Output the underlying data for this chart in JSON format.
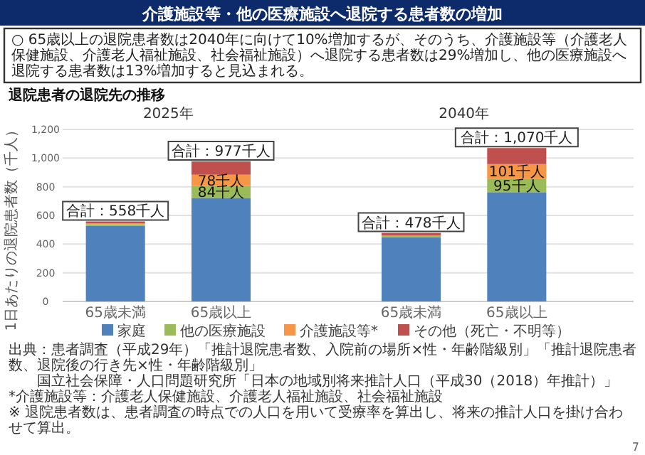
{
  "chart_data": {
    "type": "bar",
    "title": "介護施設等・他の医療施設へ退院する患者数の増加",
    "subtitle": "○ 65歳以上の退院患者数は2040年に向けて10%増加するが、そのうち、介護施設等（介護老人保健施設、介護老人福祉施設、社会福祉施設）へ退院する患者数は29%増加し、他の医療施設へ退院する患者数は13%増加すると見込まれる。",
    "ylabel": "1日あたりの退院患者数（千人）",
    "categories": [
      "65歳未満",
      "65歳以上",
      "65歳未満",
      "65歳以上"
    ],
    "stacked": true,
    "series": [
      {
        "name": "家庭",
        "color": "#4f81bd",
        "values": [
          526,
          722,
          446,
          762
        ]
      },
      {
        "name": "他の医療施設",
        "color": "#9bbb59",
        "values": [
          12,
          84,
          10,
          95
        ],
        "value_labels": [
          null,
          "84千人",
          null,
          "95千人"
        ]
      },
      {
        "name": "介護施設等*",
        "color": "#f79646",
        "values": [
          6,
          78,
          5,
          101
        ],
        "value_labels": [
          null,
          "78千人",
          null,
          "101千人"
        ]
      },
      {
        "name": "その他（死亡・不明等）",
        "color": "#c0504d",
        "values": [
          14,
          93,
          17,
          112
        ]
      }
    ],
    "totals": [
      "合計：558千人",
      "合計：977千人",
      "合計：478千人",
      "合計：1,070千人"
    ],
    "ylim": [
      0,
      1200
    ],
    "yticks": [
      0,
      200,
      400,
      600,
      800,
      {
        "value": 1000,
        "label": "1,000"
      },
      {
        "value": 1200,
        "label": "1,200"
      }
    ],
    "grid": "y",
    "legend": "bottom",
    "annotations": [
      "退院患者の退院先の推移",
      "2025年",
      "2040年",
      "出典：患者調査（平成29年）「推計退院患者数、入院前の場所×性・年齢階級別」「推計退院患者数、退院後の行き先×性・年齢階級別」",
      "国立社会保障・人口問題研究所「日本の地域別将来推計人口（平成30（2018）年推計）」",
      "*介護施設等：介護老人保健施設、介護老人福祉施設、社会福祉施設",
      "※ 退院患者数は、患者調査の時点での人口を用いて受療率を算出し、将来の推計人口を掛け合わせて算出。",
      "7"
    ]
  }
}
